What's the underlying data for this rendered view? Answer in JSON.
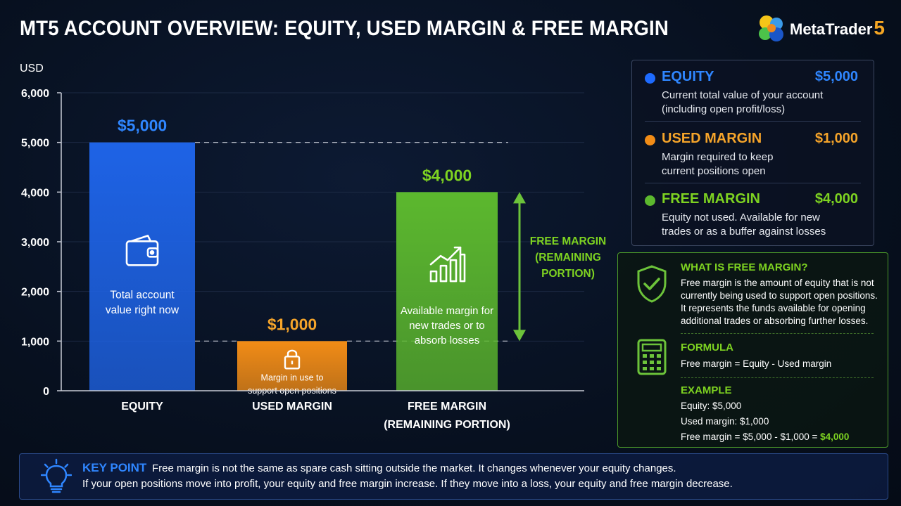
{
  "title": "MT5 ACCOUNT OVERVIEW: EQUITY, USED MARGIN & FREE MARGIN",
  "brand": {
    "name": "MetaTrader",
    "version": "5"
  },
  "colors": {
    "equity": "#1e63e6",
    "used_margin": "#f28c16",
    "free_margin": "#5cb82e",
    "equity_text": "#2f86ff",
    "used_text": "#f5a42a",
    "free_text": "#7ed321"
  },
  "chart_data": {
    "type": "bar",
    "ylabel": "USD",
    "ylim": [
      0,
      6000
    ],
    "yticks": [
      0,
      1000,
      2000,
      3000,
      4000,
      5000,
      6000
    ],
    "ytick_labels": [
      "0",
      "1,000",
      "2,000",
      "3,000",
      "4,000",
      "5,000",
      "6,000"
    ],
    "grid": true,
    "categories": [
      "EQUITY",
      "USED MARGIN",
      "FREE MARGIN (REMAINING PORTION)"
    ],
    "category_lines": [
      [
        "EQUITY"
      ],
      [
        "USED MARGIN"
      ],
      [
        "FREE MARGIN",
        "(REMAINING PORTION)"
      ]
    ],
    "values": [
      5000,
      1000,
      4000
    ],
    "value_labels": [
      "$5,000",
      "$1,000",
      "$4,000"
    ],
    "bar_text": [
      [
        "Total account",
        "value right now"
      ],
      [
        "Margin in use to",
        "support open positions"
      ],
      [
        "Available margin for",
        "new trades or to",
        "absorb losses"
      ]
    ],
    "bar_icons": [
      "wallet-icon",
      "lock-icon",
      "growth-chart-icon"
    ],
    "annotation": [
      "FREE MARGIN",
      "(REMAINING",
      "PORTION)"
    ]
  },
  "legend": {
    "items": [
      {
        "title": "EQUITY",
        "value": "$5,000",
        "desc": "Current total value of your account (including open profit/loss)",
        "color": "#2f86ff"
      },
      {
        "title": "USED MARGIN",
        "value": "$1,000",
        "desc": "Margin required to keep current positions open",
        "color": "#f5a42a"
      },
      {
        "title": "FREE MARGIN",
        "value": "$4,000",
        "desc": "Equity not used. Available for new trades or as a buffer against losses",
        "color": "#7ed321"
      }
    ]
  },
  "info": {
    "what_title": "WHAT IS FREE MARGIN?",
    "what_text": "Free margin is the amount of equity that is not currently being used to support open positions. It represents the funds available for opening additional trades or absorbing further losses.",
    "formula_title": "FORMULA",
    "formula_text": "Free margin = Equity - Used margin",
    "example_title": "EXAMPLE",
    "example_equity": "Equity: $5,000",
    "example_used": "Used margin: $1,000",
    "example_free_prefix": "Free margin = $5,000 - $1,000 =",
    "example_free_result": "$4,000"
  },
  "key_point": {
    "title": "KEY POINT",
    "line1": "Free margin is not the same as spare cash sitting outside the market. It changes whenever your equity changes.",
    "line2": "If your open positions move into profit, your equity and free margin increase. If they move into a loss, your equity and free margin decrease."
  }
}
